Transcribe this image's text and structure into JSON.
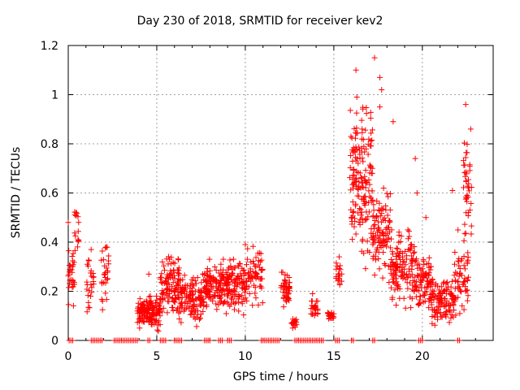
{
  "chart_data": {
    "type": "scatter",
    "title": "Day 230 of 2018, SRMTID for receiver kev2",
    "xlabel": "GPS time / hours",
    "ylabel": "SRMTID / TECUs",
    "xlim": [
      0,
      24
    ],
    "ylim": [
      0,
      1.2
    ],
    "xticks": [
      0,
      5,
      10,
      15,
      20
    ],
    "yticks": [
      0,
      0.2,
      0.4,
      0.6,
      0.8,
      1,
      1.2
    ],
    "xtick_labels": [
      "0",
      "5",
      "10",
      "15",
      "20"
    ],
    "ytick_labels": [
      "0",
      "0.2",
      "0.4",
      "0.6",
      "0.8",
      "1",
      "1.2"
    ],
    "grid": true,
    "marker": "+",
    "series": [
      {
        "name": "SRMTID",
        "color": "#ff0000",
        "clusters": [
          {
            "t0": 0.0,
            "t1": 0.35,
            "lo": 0.12,
            "hi": 0.38,
            "n": 30
          },
          {
            "t0": 0.35,
            "t1": 0.6,
            "lo": 0.3,
            "hi": 0.56,
            "n": 14
          },
          {
            "t0": 1.05,
            "t1": 1.45,
            "lo": 0.08,
            "hi": 0.37,
            "n": 26
          },
          {
            "t0": 1.85,
            "t1": 2.3,
            "lo": 0.08,
            "hi": 0.41,
            "n": 28
          },
          {
            "t0": 3.9,
            "t1": 5.2,
            "lo": 0.02,
            "hi": 0.18,
            "n": 150
          },
          {
            "t0": 5.2,
            "t1": 6.3,
            "lo": 0.05,
            "hi": 0.35,
            "n": 110
          },
          {
            "t0": 6.3,
            "t1": 7.6,
            "lo": 0.05,
            "hi": 0.27,
            "n": 120
          },
          {
            "t0": 7.6,
            "t1": 9.0,
            "lo": 0.07,
            "hi": 0.33,
            "n": 140
          },
          {
            "t0": 9.0,
            "t1": 10.1,
            "lo": 0.08,
            "hi": 0.33,
            "n": 110
          },
          {
            "t0": 10.1,
            "t1": 11.0,
            "lo": 0.09,
            "hi": 0.39,
            "n": 60
          },
          {
            "t0": 12.0,
            "t1": 12.5,
            "lo": 0.1,
            "hi": 0.28,
            "n": 45
          },
          {
            "t0": 12.6,
            "t1": 12.9,
            "lo": 0.03,
            "hi": 0.1,
            "n": 20
          },
          {
            "t0": 13.7,
            "t1": 14.1,
            "lo": 0.08,
            "hi": 0.16,
            "n": 25
          },
          {
            "t0": 14.6,
            "t1": 15.0,
            "lo": 0.08,
            "hi": 0.12,
            "n": 22
          },
          {
            "t0": 15.1,
            "t1": 15.5,
            "lo": 0.15,
            "hi": 0.34,
            "n": 18
          },
          {
            "t0": 15.9,
            "t1": 17.2,
            "lo": 0.25,
            "hi": 0.95,
            "n": 170
          },
          {
            "t0": 17.2,
            "t1": 18.2,
            "lo": 0.2,
            "hi": 0.62,
            "n": 100
          },
          {
            "t0": 18.2,
            "t1": 19.6,
            "lo": 0.1,
            "hi": 0.45,
            "n": 130
          },
          {
            "t0": 19.6,
            "t1": 20.5,
            "lo": 0.08,
            "hi": 0.36,
            "n": 80
          },
          {
            "t0": 20.5,
            "t1": 21.8,
            "lo": 0.03,
            "hi": 0.25,
            "n": 120
          },
          {
            "t0": 21.8,
            "t1": 22.6,
            "lo": 0.04,
            "hi": 0.45,
            "n": 60
          },
          {
            "t0": 22.3,
            "t1": 22.8,
            "lo": 0.3,
            "hi": 0.86,
            "n": 40
          }
        ],
        "extra_points": [
          [
            16.25,
            1.1
          ],
          [
            17.3,
            1.15
          ],
          [
            17.6,
            1.07
          ],
          [
            17.7,
            1.02
          ],
          [
            17.6,
            0.95
          ],
          [
            16.3,
            0.99
          ],
          [
            22.45,
            0.96
          ],
          [
            18.35,
            0.89
          ],
          [
            16.6,
            0.86
          ],
          [
            19.6,
            0.74
          ],
          [
            19.7,
            0.6
          ],
          [
            21.7,
            0.61
          ],
          [
            20.2,
            0.5
          ],
          [
            0.0,
            0.48
          ],
          [
            0.55,
            0.41
          ],
          [
            4.55,
            0.27
          ],
          [
            10.0,
            0.39
          ],
          [
            15.3,
            0.34
          ],
          [
            13.8,
            0.19
          ]
        ],
        "zero_markers": [
          [
            0.05,
            0.3
          ],
          [
            1.3,
            1.9
          ],
          [
            2.6,
            3.95
          ],
          [
            4.5,
            4.6
          ],
          [
            5.2,
            5.5
          ],
          [
            6.0,
            6.4
          ],
          [
            7.7,
            8.0
          ],
          [
            8.5,
            8.7
          ],
          [
            9.0,
            9.2
          ],
          [
            10.9,
            11.9
          ],
          [
            12.8,
            14.4
          ],
          [
            15.1,
            15.3
          ],
          [
            16.0,
            16.1
          ],
          [
            17.2,
            17.3
          ],
          [
            19.8,
            20.0
          ],
          [
            22.0,
            22.1
          ]
        ]
      }
    ]
  }
}
